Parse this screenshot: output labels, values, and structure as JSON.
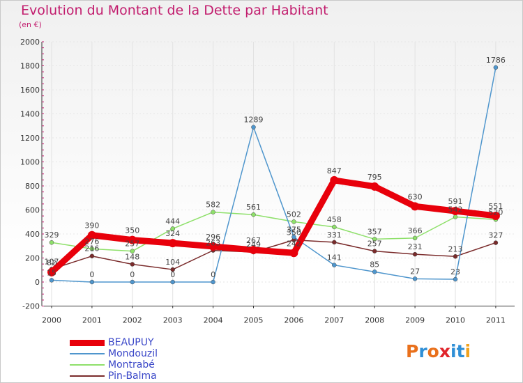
{
  "header": {
    "title": "Evolution du Montant de la Dette par Habitant",
    "unit": "(en €)"
  },
  "logo": {
    "letters": [
      "P",
      "r",
      "o",
      "x",
      "i",
      "t",
      "i"
    ],
    "colors": [
      "#e9701b",
      "#2f8fd6",
      "#e9701b",
      "#e0242b",
      "#2f8fd6",
      "#2f8fd6",
      "#f0a21e"
    ]
  },
  "chart_data": {
    "type": "line",
    "title": "Evolution du Montant de la Dette par Habitant",
    "ylabel": "(en €)",
    "xlabel": "",
    "ylim": [
      -200,
      2000
    ],
    "yticks": [
      -200,
      0,
      200,
      400,
      600,
      800,
      1000,
      1200,
      1400,
      1600,
      1800,
      2000
    ],
    "categories": [
      "2000",
      "2001",
      "2002",
      "2003",
      "2004",
      "2005",
      "2006",
      "2007",
      "2008",
      "2009",
      "2010",
      "2011"
    ],
    "series": [
      {
        "name": "BEAUPUY",
        "color": "#e8000b",
        "values": [
          82,
          390,
          350,
          324,
          296,
          267,
          242,
          847,
          795,
          630,
          591,
          551
        ],
        "labels": [
          "82",
          "390",
          "350",
          "324",
          "296",
          "267",
          "242",
          "847",
          "795",
          "630",
          "591",
          "551"
        ]
      },
      {
        "name": "Mondouzil",
        "color": "#4f96cd",
        "values": [
          15,
          0,
          0,
          0,
          0,
          1289,
          375,
          141,
          85,
          27,
          23,
          1786
        ],
        "labels": [
          "15",
          "0",
          "0",
          "0",
          "0",
          "1289",
          "375",
          "141",
          "85",
          "27",
          "23",
          "1786"
        ]
      },
      {
        "name": "Montrabé",
        "color": "#8ee06a",
        "values": [
          329,
          276,
          257,
          444,
          582,
          561,
          502,
          458,
          357,
          366,
          542,
          520
        ],
        "labels": [
          "329",
          "276",
          "257",
          "444",
          "582",
          "561",
          "502",
          "458",
          "357",
          "366",
          "542",
          "520"
        ]
      },
      {
        "name": "Pin-Balma",
        "color": "#7a2b2b",
        "values": [
          107,
          216,
          148,
          104,
          263,
          249,
          350,
          331,
          257,
          231,
          213,
          327
        ],
        "labels": [
          "107",
          "216",
          "148",
          "104",
          "263",
          "249",
          "350",
          "331",
          "257",
          "231",
          "213",
          "327"
        ]
      }
    ]
  }
}
